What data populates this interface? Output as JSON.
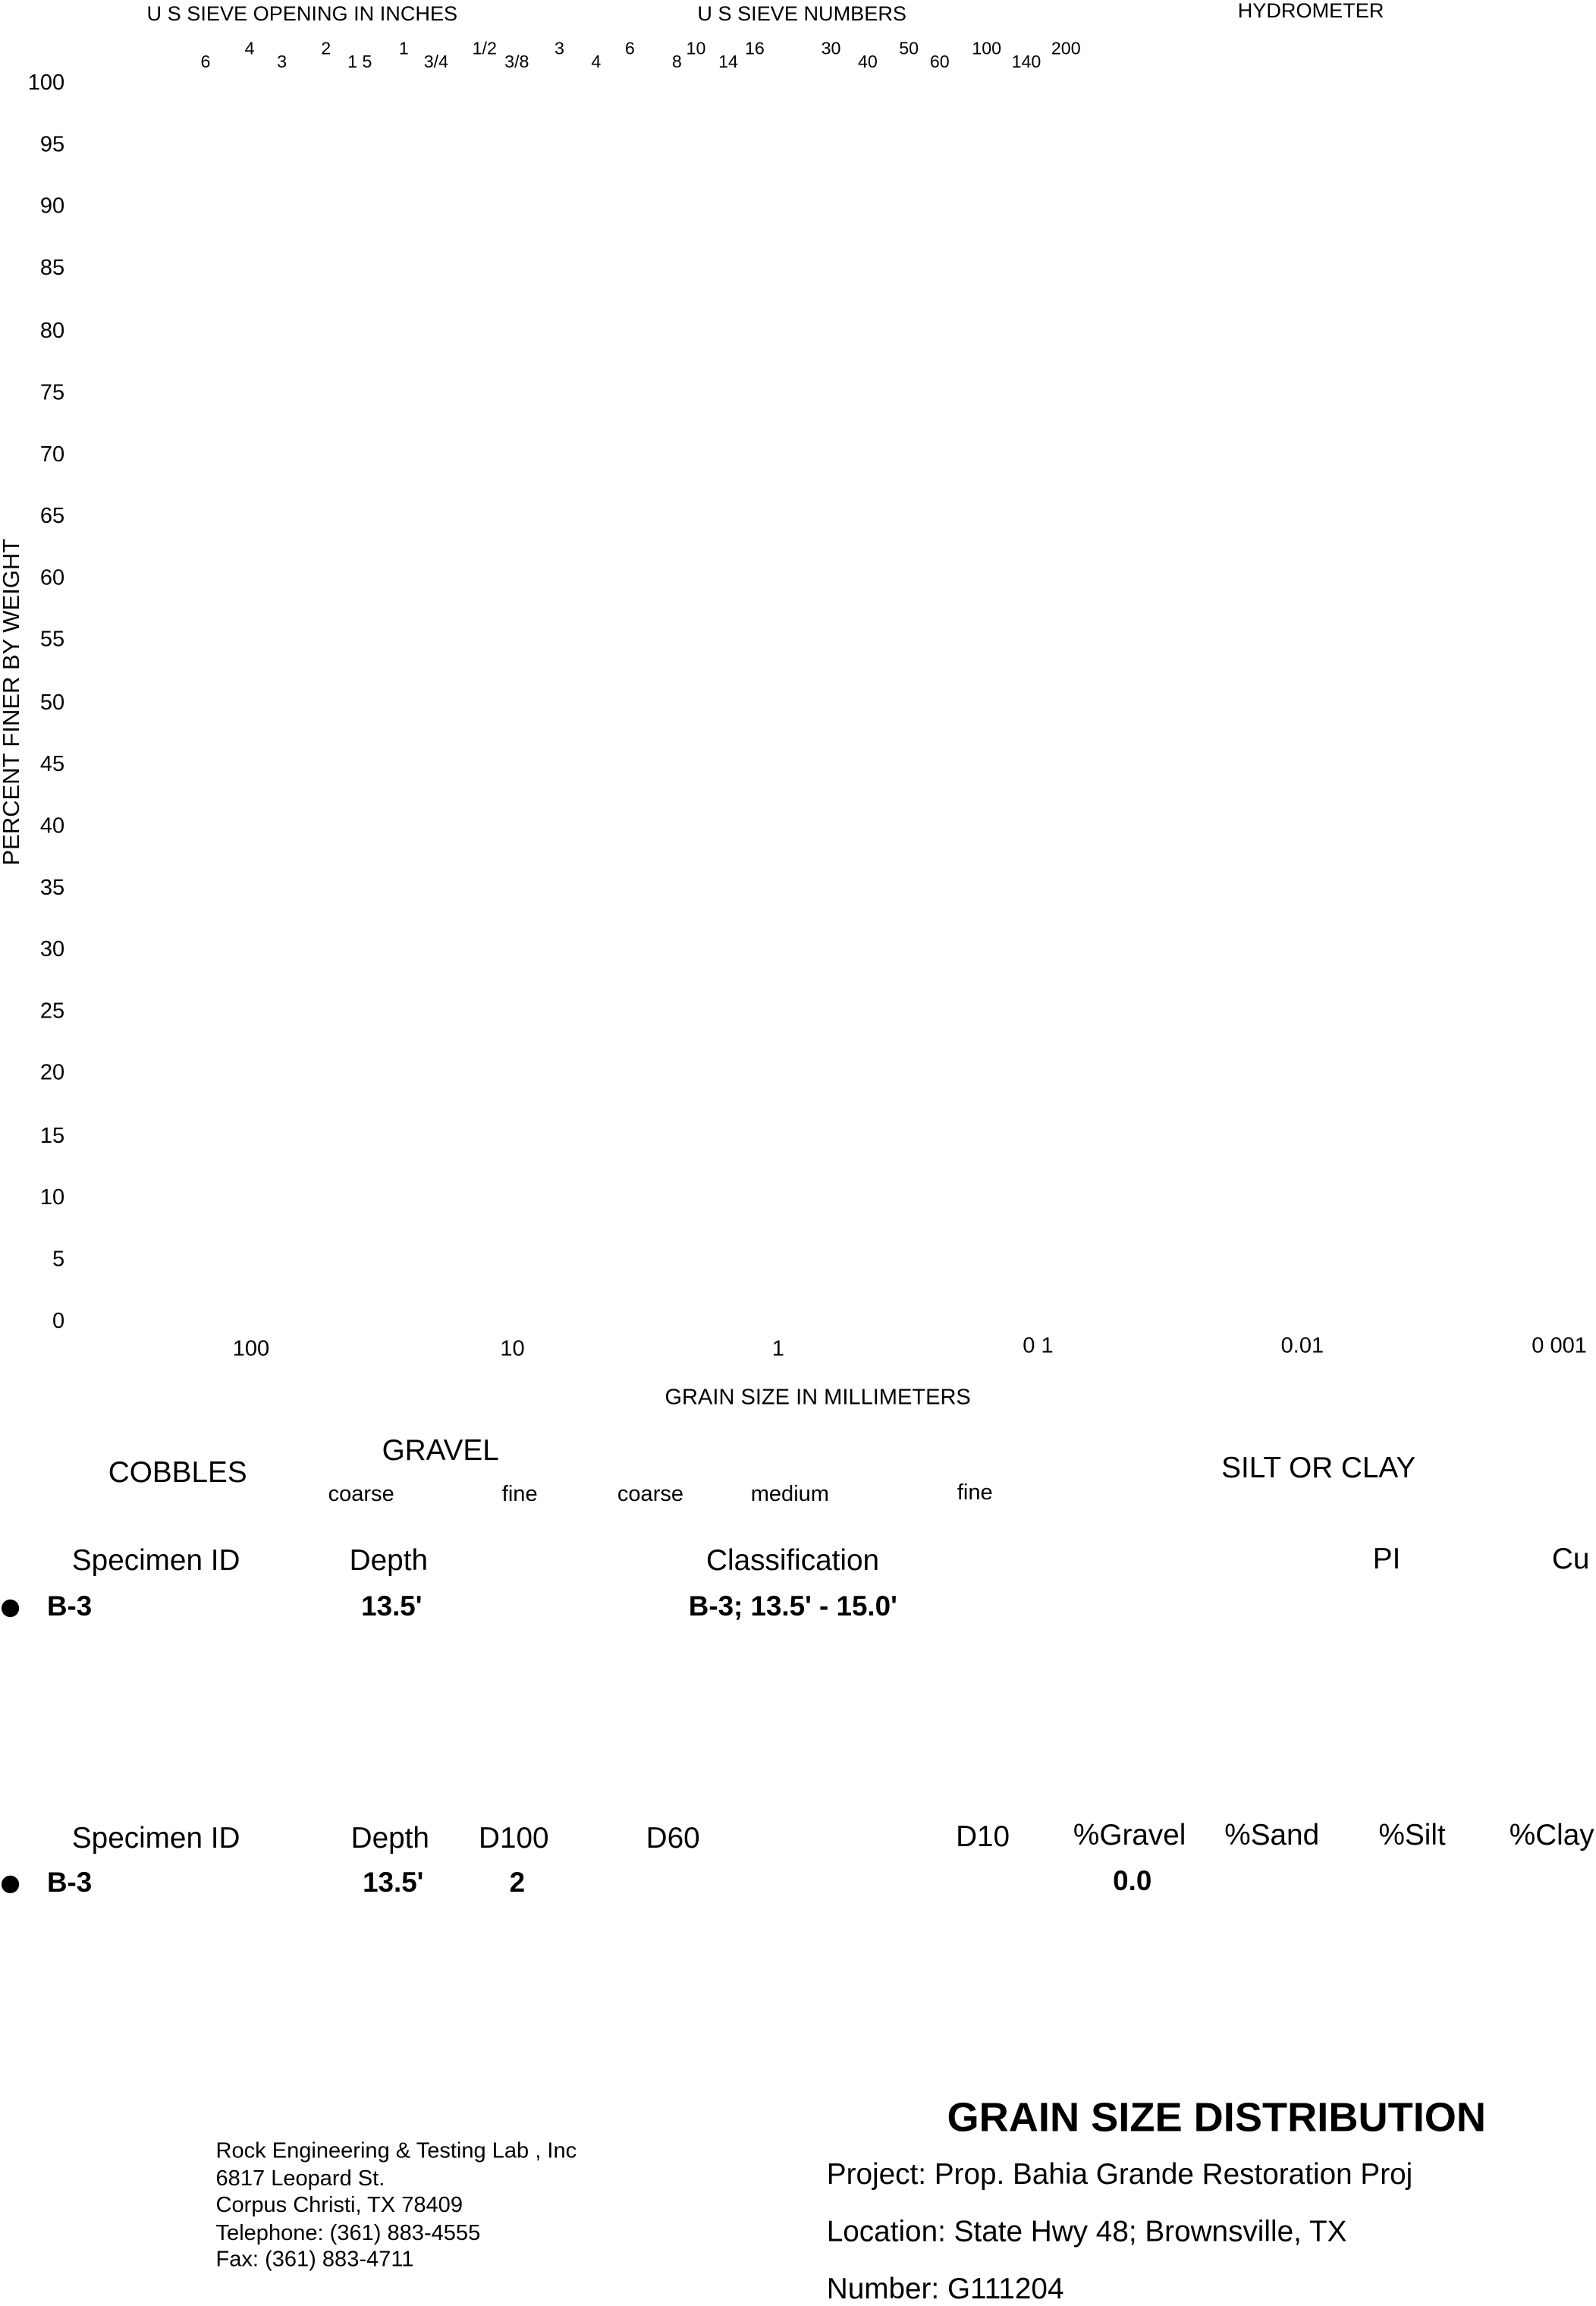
{
  "chart_data": {
    "type": "scatter",
    "title": "GRAIN SIZE DISTRIBUTION",
    "xlabel": "GRAIN SIZE IN MILLIMETERS",
    "ylabel": "PERCENT FINER BY WEIGHT",
    "xscale": "log",
    "xlim": [
      1000,
      0.001
    ],
    "ylim": [
      0,
      100
    ],
    "x_ticks": [
      "100",
      "10",
      "1",
      "0 1",
      "0.01",
      "0 001"
    ],
    "y_ticks": [
      "100",
      "95",
      "90",
      "85",
      "80",
      "75",
      "70",
      "65",
      "60",
      "55",
      "50",
      "45",
      "40",
      "35",
      "30",
      "25",
      "20",
      "15",
      "10",
      "5",
      "0"
    ],
    "top_headers": {
      "sieve_inches": "U S  SIEVE OPENING IN INCHES",
      "sieve_numbers": "U S  SIEVE NUMBERS",
      "hydrometer": "HYDROMETER"
    },
    "sieve_labels": [
      "6",
      "4",
      "3",
      "2",
      "1 5",
      "1",
      "3/4",
      "1/2",
      "3/8",
      "3",
      "4",
      "6",
      "8",
      "10",
      "14",
      "16",
      "30",
      "40",
      "50",
      "60",
      "100",
      "140",
      "200"
    ],
    "series": []
  },
  "classes": {
    "cobbles": "COBBLES",
    "gravel": "GRAVEL",
    "gravel_coarse": "coarse",
    "gravel_fine": "fine",
    "sand_coarse": "coarse",
    "sand_medium": "medium",
    "sand_fine": "fine",
    "silt_clay": "SILT OR CLAY"
  },
  "table1": {
    "headers": [
      "Specimen ID",
      "Depth",
      "Classification",
      "PI",
      "Cu"
    ],
    "rows": [
      {
        "id": "B-3",
        "depth": "13.5'",
        "classification": "B-3; 13.5' - 15.0'"
      }
    ]
  },
  "table2": {
    "headers": [
      "Specimen ID",
      "Depth",
      "D100",
      "D60",
      "D10",
      "%Gravel",
      "%Sand",
      "%Silt",
      "%Clay"
    ],
    "rows": [
      {
        "id": "B-3",
        "depth": "13.5'",
        "d100": "2",
        "gravel": "0.0"
      }
    ]
  },
  "footer": {
    "company": [
      "Rock Engineering & Testing Lab , Inc",
      "6817 Leopard St.",
      "Corpus Christi, TX 78409",
      "Telephone:  (361) 883-4555",
      "Fax:  (361) 883-4711"
    ],
    "title": "GRAIN SIZE DISTRIBUTION",
    "project": "Project:  Prop. Bahia Grande Restoration Proj",
    "location": "Location:  State Hwy  48; Brownsville, TX",
    "number": "Number:  G111204"
  }
}
